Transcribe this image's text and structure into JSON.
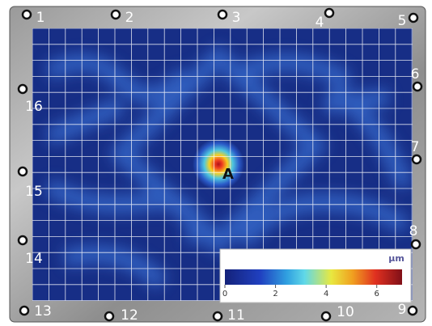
{
  "points": [
    "1",
    "2",
    "3",
    "4",
    "5",
    "6",
    "7",
    "8",
    "9",
    "10",
    "11",
    "12",
    "13",
    "14",
    "15",
    "16"
  ],
  "annotation": "A",
  "colorbar": {
    "unit": "µm",
    "lim": [
      0,
      7
    ],
    "ticks": [
      0,
      2,
      4,
      6
    ]
  }
}
